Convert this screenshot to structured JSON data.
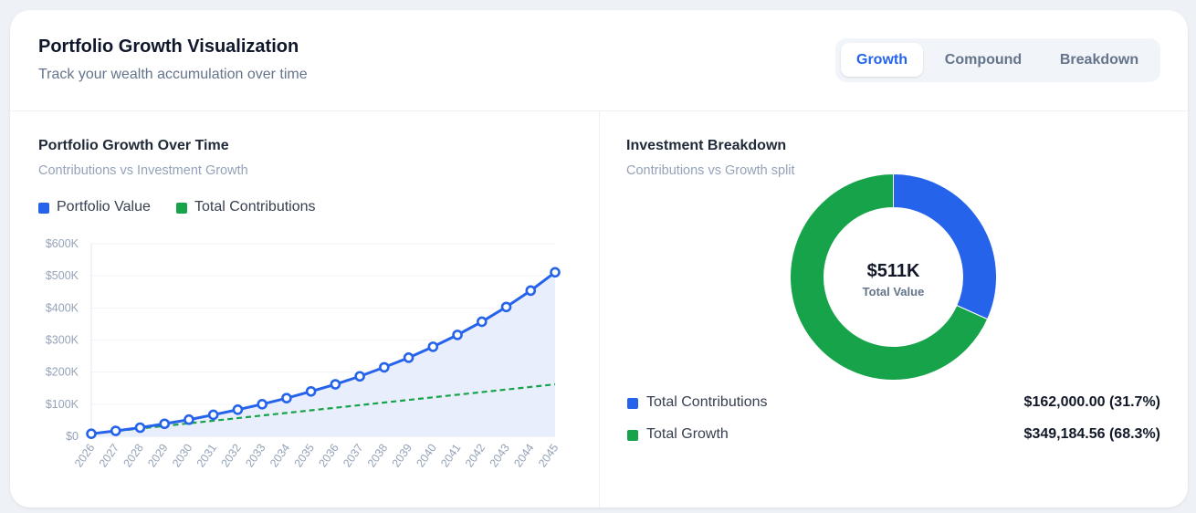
{
  "header": {
    "title": "Portfolio Growth Visualization",
    "subtitle": "Track your wealth accumulation over time",
    "tabs": [
      {
        "label": "Growth",
        "active": true
      },
      {
        "label": "Compound",
        "active": false
      },
      {
        "label": "Breakdown",
        "active": false
      }
    ]
  },
  "colors": {
    "portfolio": "#2563eb",
    "contributions": "#16a34a",
    "area_fill": "#e8eefb"
  },
  "growth_section": {
    "title": "Portfolio Growth Over Time",
    "subtitle": "Contributions vs Investment Growth",
    "legend": [
      "Portfolio Value",
      "Total Contributions"
    ]
  },
  "breakdown_section": {
    "title": "Investment Breakdown",
    "subtitle": "Contributions vs Growth split",
    "center_value": "$511K",
    "center_label": "Total Value",
    "rows": [
      {
        "label": "Total Contributions",
        "value": "$162,000.00 (31.7%)"
      },
      {
        "label": "Total Growth",
        "value": "$349,184.56 (68.3%)"
      }
    ]
  },
  "chart_data": [
    {
      "type": "line",
      "title": "Portfolio Growth Over Time",
      "x": [
        "2026",
        "2027",
        "2028",
        "2029",
        "2030",
        "2031",
        "2032",
        "2033",
        "2034",
        "2035",
        "2036",
        "2037",
        "2038",
        "2039",
        "2040",
        "2041",
        "2042",
        "2043",
        "2044",
        "2045"
      ],
      "yticks": [
        "$0",
        "$100K",
        "$200K",
        "$300K",
        "$400K",
        "$500K",
        "$600K"
      ],
      "ylim": [
        0,
        600000
      ],
      "grid": true,
      "legend_position": "top-left",
      "series": [
        {
          "name": "Portfolio Value",
          "style": "solid-markers-area",
          "values": [
            8000,
            17000,
            27000,
            39000,
            52000,
            67000,
            83000,
            100000,
            119000,
            140000,
            162000,
            187000,
            215000,
            245000,
            279000,
            316000,
            357000,
            403000,
            454000,
            511000
          ]
        },
        {
          "name": "Total Contributions",
          "style": "dashed",
          "values": [
            8100,
            16200,
            24300,
            32400,
            40500,
            48600,
            56700,
            64800,
            72900,
            81000,
            89100,
            97200,
            105300,
            113400,
            121500,
            129600,
            137700,
            145800,
            153900,
            162000
          ]
        }
      ]
    },
    {
      "type": "pie",
      "title": "Investment Breakdown",
      "donut": true,
      "labels": [
        "Total Contributions",
        "Total Growth"
      ],
      "values": [
        162000.0,
        349184.56
      ],
      "percent": [
        31.7,
        68.3
      ]
    }
  ]
}
